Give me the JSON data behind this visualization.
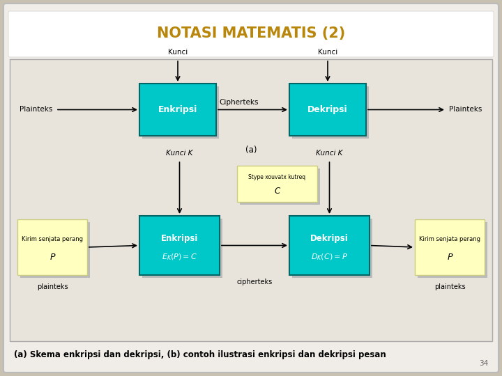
{
  "title": "NOTASI MATEMATIS (2)",
  "title_color": "#B8860B",
  "bg_outer": "#C8C0B0",
  "bg_slide": "#F0EDE8",
  "bg_content": "#E8E4DC",
  "box_cyan": "#00C8C8",
  "box_cyan_border": "#006666",
  "box_yellow": "#FFFFC0",
  "box_yellow_border": "#CCCC80",
  "shadow_color": "#BBBBBB",
  "text_color": "#333333",
  "caption": "(a) Skema enkripsi dan dekripsi, (b) contoh ilustrasi enkripsi dan dekripsi pesan",
  "page_number": "34"
}
